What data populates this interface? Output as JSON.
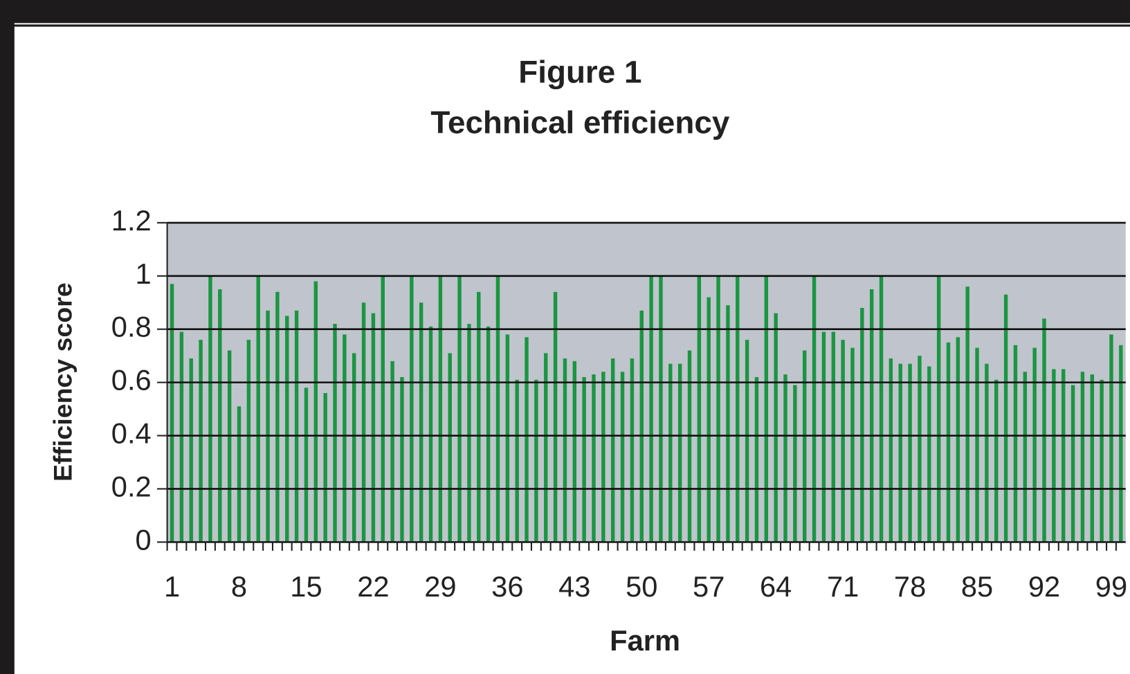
{
  "chart_data": {
    "type": "bar",
    "title": "Figure 1",
    "subtitle": "Technical efficiency",
    "x_label": "Farm",
    "y_label": "Efficiency score",
    "categories": [
      "1",
      null,
      null,
      null,
      null,
      null,
      null,
      "8",
      null,
      null,
      null,
      null,
      null,
      null,
      "15",
      null,
      null,
      null,
      null,
      null,
      null,
      "22",
      null,
      null,
      null,
      null,
      null,
      null,
      "29",
      null,
      null,
      null,
      null,
      null,
      null,
      "36",
      null,
      null,
      null,
      null,
      null,
      null,
      "43",
      null,
      null,
      null,
      null,
      null,
      null,
      "50",
      null,
      null,
      null,
      null,
      null,
      null,
      "57",
      null,
      null,
      null,
      null,
      null,
      null,
      "64",
      null,
      null,
      null,
      null,
      null,
      null,
      "71",
      null,
      null,
      null,
      null,
      null,
      null,
      "78",
      null,
      null,
      null,
      null,
      null,
      null,
      "85",
      null,
      null,
      null,
      null,
      null,
      null,
      "92",
      null,
      null,
      null,
      null,
      null,
      null,
      "99",
      null
    ],
    "values": [
      0.97,
      0.79,
      0.69,
      0.76,
      1.0,
      0.95,
      0.72,
      0.51,
      0.76,
      1.0,
      0.87,
      0.94,
      0.85,
      0.87,
      0.58,
      0.98,
      0.56,
      0.82,
      0.78,
      0.71,
      0.9,
      0.86,
      1.0,
      0.68,
      0.62,
      1.0,
      0.9,
      0.81,
      1.0,
      0.71,
      1.0,
      0.82,
      0.94,
      0.81,
      1.0,
      0.78,
      0.61,
      0.77,
      0.61,
      0.71,
      0.94,
      0.69,
      0.68,
      0.62,
      0.63,
      0.64,
      0.69,
      0.64,
      0.69,
      0.87,
      1.0,
      1.0,
      0.67,
      0.67,
      0.72,
      1.0,
      0.92,
      1.0,
      0.89,
      1.0,
      0.76,
      0.62,
      1.0,
      0.86,
      0.63,
      0.59,
      0.72,
      1.0,
      0.79,
      0.79,
      0.76,
      0.73,
      0.88,
      0.95,
      1.0,
      0.69,
      0.67,
      0.67,
      0.7,
      0.66,
      1.0,
      0.75,
      0.77,
      0.96,
      0.73,
      0.67,
      0.61,
      0.93,
      0.74,
      0.64,
      0.73,
      0.84,
      0.65,
      0.65,
      0.59,
      0.64,
      0.63,
      0.61,
      0.78,
      0.74
    ],
    "color": "#1a9641",
    "ylim": [
      0,
      1.2
    ],
    "yticks": [
      0,
      0.2,
      0.4,
      0.6,
      0.8,
      1,
      1.2
    ],
    "grid": true
  }
}
